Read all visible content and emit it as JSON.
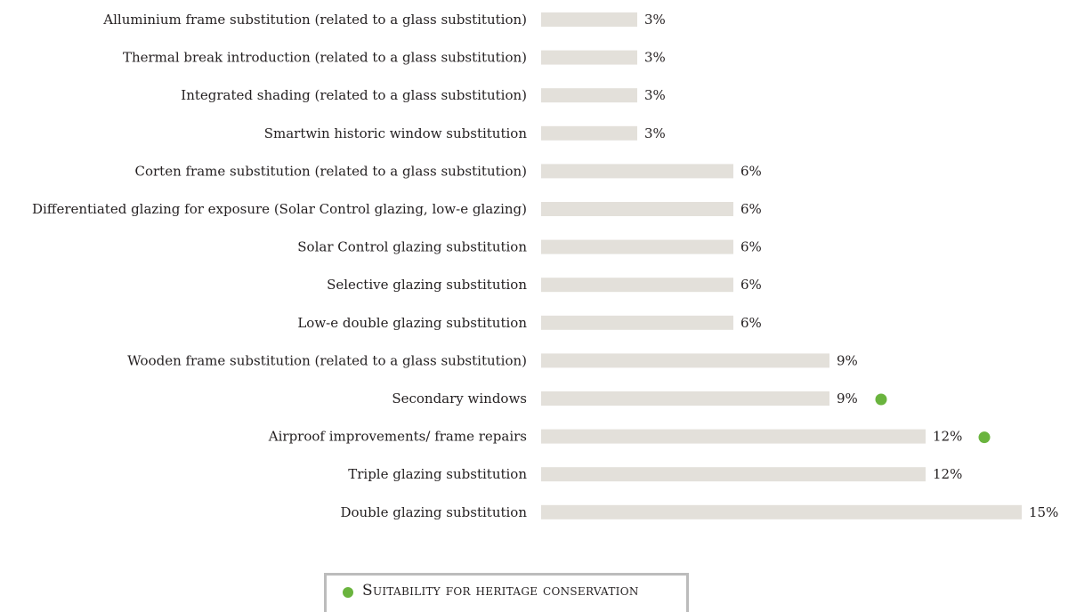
{
  "colors": {
    "bar": "#e3e0da",
    "heritage_marker": "#6ab43e",
    "text": "#231f20"
  },
  "legend": {
    "label": "Suitability for heritage conservation",
    "marker_icon": "green-dot-icon"
  },
  "chart_data": {
    "type": "bar",
    "orientation": "horizontal",
    "value_unit": "%",
    "xlim": [
      0,
      15
    ],
    "grid": false,
    "legend_position": "bottom-center",
    "categories": [
      "Alluminium frame substitution  (related to  a glass substitution)",
      "Thermal break introduction (related to  a glass substitution)",
      "Integrated shading  (related to  a glass substitution)",
      "Smartwin historic window substitution",
      "Corten frame substitution  (related to  a glass substitution)",
      "Differentiated glazing for exposure (Solar Control glazing, low-e glazing)",
      "Solar Control glazing substitution",
      "Selective glazing substitution",
      "Low-e double glazing  substitution",
      "Wooden frame substitution  (related to  a glass substitution)",
      "Secondary  windows",
      "Airproof improvements/ frame repairs",
      "Triple glazing substitution",
      "Double glazing substitution"
    ],
    "values": [
      3,
      3,
      3,
      3,
      6,
      6,
      6,
      6,
      6,
      9,
      9,
      12,
      12,
      15
    ],
    "value_labels": [
      "3%",
      "3%",
      "3%",
      "3%",
      "6%",
      "6%",
      "6%",
      "6%",
      "6%",
      "9%",
      "9%",
      "12%",
      "12%",
      "15%"
    ],
    "heritage_suitable": [
      false,
      false,
      false,
      false,
      false,
      false,
      false,
      false,
      false,
      false,
      true,
      true,
      false,
      false
    ]
  }
}
